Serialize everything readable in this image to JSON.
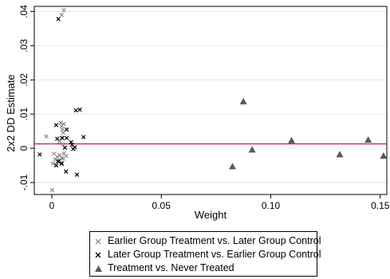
{
  "chart_data": {
    "type": "scatter",
    "xlabel": "Weight",
    "ylabel": "2x2 DD Estimate",
    "xlim": [
      -0.008,
      0.153
    ],
    "ylim": [
      -0.0135,
      0.0415
    ],
    "x_ticks": [
      {
        "value": 0,
        "label": "0"
      },
      {
        "value": 0.05,
        "label": "0.05"
      },
      {
        "value": 0.1,
        "label": "0.10"
      },
      {
        "value": 0.15,
        "label": "0.15"
      }
    ],
    "y_ticks": [
      {
        "value": -0.01,
        "label": "-.01"
      },
      {
        "value": 0,
        "label": "0"
      },
      {
        "value": 0.01,
        "label": ".01"
      },
      {
        "value": 0.02,
        "label": ".02"
      },
      {
        "value": 0.03,
        "label": ".03"
      },
      {
        "value": 0.04,
        "label": ".04"
      }
    ],
    "grid": "horizontal",
    "reference_line": {
      "y": 0.0013,
      "color": "#c2185b"
    },
    "legend_position": "bottom",
    "series": [
      {
        "name": "Earlier Group Treatment vs. Later Group Control",
        "marker": "x",
        "color": "#8c8c8c",
        "points": [
          {
            "x": 0.0045,
            "y": 0.039
          },
          {
            "x": 0.0055,
            "y": 0.0404
          },
          {
            "x": 0.004,
            "y": 0.0075
          },
          {
            "x": 0.0055,
            "y": 0.0071
          },
          {
            "x": 0.0045,
            "y": 0.0065
          },
          {
            "x": 0.0048,
            "y": 0.0056
          },
          {
            "x": 0.0052,
            "y": 0.0046
          },
          {
            "x": -0.0025,
            "y": 0.0035
          },
          {
            "x": 0.0045,
            "y": 0.0031
          },
          {
            "x": 0.0035,
            "y": 0.002
          },
          {
            "x": 0.005,
            "y": 0.0012
          },
          {
            "x": 0.001,
            "y": -0.0016
          },
          {
            "x": 0.0025,
            "y": -0.0025
          },
          {
            "x": 0.0035,
            "y": -0.002
          },
          {
            "x": 0.0045,
            "y": -0.0028
          },
          {
            "x": 0.0055,
            "y": -0.0015
          },
          {
            "x": 0.0015,
            "y": -0.0032
          },
          {
            "x": 0.0025,
            "y": -0.0039
          },
          {
            "x": 0.0035,
            "y": -0.0036
          },
          {
            "x": 0.0045,
            "y": -0.0042
          },
          {
            "x": 0.0052,
            "y": -0.003
          },
          {
            "x": 0.0005,
            "y": -0.0044
          },
          {
            "x": 0.0065,
            "y": -0.0022
          },
          {
            "x": 0.0002,
            "y": -0.0122
          }
        ]
      },
      {
        "name": "Later Group Treatment vs. Earlier Group Control",
        "marker": "x",
        "color": "#000000",
        "points": [
          {
            "x": 0.003,
            "y": 0.0378
          },
          {
            "x": 0.002,
            "y": 0.0068
          },
          {
            "x": 0.0068,
            "y": 0.0055
          },
          {
            "x": 0.011,
            "y": 0.0111
          },
          {
            "x": 0.0128,
            "y": 0.0113
          },
          {
            "x": 0.0145,
            "y": 0.0033
          },
          {
            "x": 0.0025,
            "y": 0.0028
          },
          {
            "x": 0.0048,
            "y": 0.003
          },
          {
            "x": 0.0068,
            "y": 0.003
          },
          {
            "x": 0.0088,
            "y": 0.0018
          },
          {
            "x": 0.0092,
            "y": 0.001
          },
          {
            "x": 0.0105,
            "y": 0.0003
          },
          {
            "x": 0.006,
            "y": 0.0002
          },
          {
            "x": 0.0098,
            "y": -0.0002
          },
          {
            "x": -0.0055,
            "y": -0.0018
          },
          {
            "x": 0.003,
            "y": -0.0038
          },
          {
            "x": 0.0045,
            "y": -0.0045
          },
          {
            "x": 0.002,
            "y": -0.005
          },
          {
            "x": 0.0065,
            "y": -0.0068
          },
          {
            "x": 0.0115,
            "y": -0.0077
          }
        ]
      },
      {
        "name": "Treatment vs. Never Treated",
        "marker": "triangle",
        "color": "#595959",
        "points": [
          {
            "x": 0.0875,
            "y": 0.0137
          },
          {
            "x": 0.0915,
            "y": -0.0004
          },
          {
            "x": 0.0825,
            "y": -0.0053
          },
          {
            "x": 0.1095,
            "y": 0.0023
          },
          {
            "x": 0.1315,
            "y": -0.0018
          },
          {
            "x": 0.1445,
            "y": 0.0025
          },
          {
            "x": 0.1515,
            "y": -0.0022
          }
        ]
      }
    ]
  }
}
